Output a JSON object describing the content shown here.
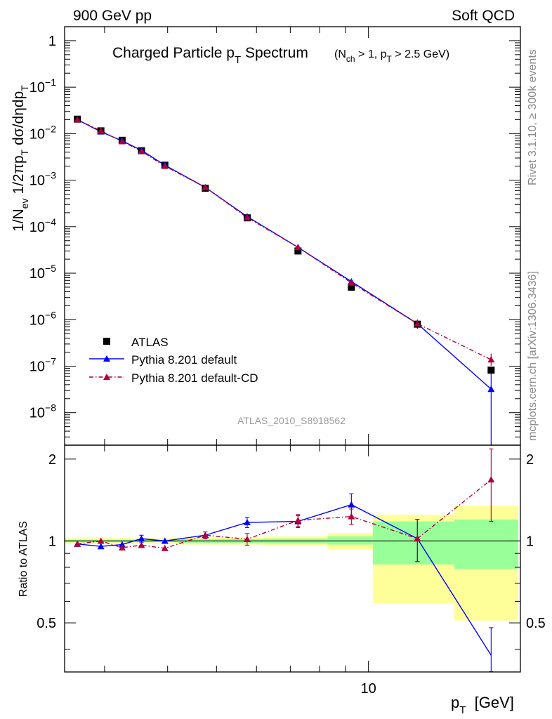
{
  "header": {
    "left": "900 GeV pp",
    "right": "Soft QCD"
  },
  "side_labels": {
    "rivet": "Rivet 3.1.10, ≥ 300k events",
    "mcplots": "mcplots.cern.ch [arXiv:1306.3436]"
  },
  "chart_data": [
    {
      "type": "scatter",
      "title_main": "Charged Particle p",
      "title_main_sub": "T",
      "title_main_tail": " Spectrum",
      "title_cut_1": "(N",
      "title_cut_sub1": "ch",
      "title_cut_2": " > 1, p",
      "title_cut_sub2": "T",
      "title_cut_3": " > 2.5 GeV)",
      "ylabel_parts": [
        "1/N",
        "ev",
        " 1/2πp",
        "T",
        " dσ/dηdp",
        "T"
      ],
      "watermark": "ATLAS_2010_S8918562",
      "yscale": "log",
      "ylim": [
        2e-09,
        2
      ],
      "xscale": "log",
      "xlim": [
        2.5,
        20
      ],
      "y_ticks": [
        {
          "v": 1,
          "label": "1"
        },
        {
          "v": 0.1,
          "label": "10",
          "exp": "−1"
        },
        {
          "v": 0.01,
          "label": "10",
          "exp": "−2"
        },
        {
          "v": 0.001,
          "label": "10",
          "exp": "−3"
        },
        {
          "v": 0.0001,
          "label": "10",
          "exp": "−4"
        },
        {
          "v": 1e-05,
          "label": "10",
          "exp": "−5"
        },
        {
          "v": 1e-06,
          "label": "10",
          "exp": "−6"
        },
        {
          "v": 1e-07,
          "label": "10",
          "exp": "−7"
        },
        {
          "v": 1e-08,
          "label": "10",
          "exp": "−8"
        }
      ],
      "legend_position": "lower-left",
      "x": [
        2.65,
        2.95,
        3.25,
        3.55,
        3.95,
        4.75,
        5.75,
        7.25,
        9.25,
        12.5,
        17.5
      ],
      "series": [
        {
          "name": "ATLAS",
          "color": "#000000",
          "marker": "square",
          "values": [
            0.0205,
            0.0115,
            0.0072,
            0.0043,
            0.0021,
            0.00067,
            0.000155,
            3e-05,
            5e-06,
            8e-07,
            8.2e-08
          ]
        },
        {
          "name": "Pythia 8.201 default",
          "color": "#0000ff",
          "marker": "triangle",
          "line": "solid",
          "values": [
            0.02,
            0.011,
            0.007,
            0.0044,
            0.0021,
            0.0007,
            0.000165,
            3.6e-05,
            6.6e-06,
            8.2e-07,
            3.2e-08
          ]
        },
        {
          "name": "Pythia 8.201 default-CD",
          "color": "#b0003a",
          "marker": "triangle",
          "line": "dashdot",
          "values": [
            0.02,
            0.0115,
            0.0068,
            0.0042,
            0.002,
            0.0007,
            0.000157,
            3.6e-05,
            6.2e-06,
            8.2e-07,
            1.38e-07
          ]
        }
      ]
    },
    {
      "type": "scatter",
      "ylabel": "Ratio to ATLAS",
      "ylim": [
        0.33,
        2.25
      ],
      "y_ticks": [
        {
          "v": 2,
          "label": "2"
        },
        {
          "v": 1,
          "label": "1"
        },
        {
          "v": 0.5,
          "label": "0.5"
        }
      ],
      "x_ticks": [
        {
          "v": 10,
          "label": "10"
        }
      ],
      "xlabel_parts": [
        "p",
        "T",
        "  [GeV]"
      ],
      "xlim": [
        2.5,
        20
      ],
      "bands": [
        {
          "x0": 2.5,
          "x1": 2.8,
          "stat": [
            0.99,
            1.01
          ],
          "tot": [
            0.975,
            1.025
          ]
        },
        {
          "x0": 2.8,
          "x1": 3.1,
          "stat": [
            0.99,
            1.01
          ],
          "tot": [
            0.975,
            1.025
          ]
        },
        {
          "x0": 3.1,
          "x1": 3.4,
          "stat": [
            0.99,
            1.01
          ],
          "tot": [
            0.975,
            1.025
          ]
        },
        {
          "x0": 3.4,
          "x1": 3.7,
          "stat": [
            0.99,
            1.01
          ],
          "tot": [
            0.975,
            1.025
          ]
        },
        {
          "x0": 3.7,
          "x1": 4.2,
          "stat": [
            0.99,
            1.01
          ],
          "tot": [
            0.975,
            1.025
          ]
        },
        {
          "x0": 4.2,
          "x1": 5.3,
          "stat": [
            0.985,
            1.015
          ],
          "tot": [
            0.97,
            1.03
          ]
        },
        {
          "x0": 5.3,
          "x1": 6.2,
          "stat": [
            0.985,
            1.015
          ],
          "tot": [
            0.97,
            1.03
          ]
        },
        {
          "x0": 6.2,
          "x1": 8.3,
          "stat": [
            0.98,
            1.02
          ],
          "tot": [
            0.96,
            1.04
          ]
        },
        {
          "x0": 8.3,
          "x1": 10.2,
          "stat": [
            0.97,
            1.04
          ],
          "tot": [
            0.93,
            1.07
          ]
        },
        {
          "x0": 10.2,
          "x1": 14.8,
          "stat": [
            0.82,
            1.18
          ],
          "tot": [
            0.59,
            1.25
          ]
        },
        {
          "x0": 14.8,
          "x1": 19.8,
          "stat": [
            0.79,
            1.2
          ],
          "tot": [
            0.51,
            1.35
          ]
        }
      ],
      "series": [
        {
          "name": "Pythia 8.201 default",
          "color": "#0000ff",
          "values": [
            0.975,
            0.955,
            0.97,
            1.02,
            1.0,
            1.05,
            1.17,
            1.18,
            1.36,
            1.02,
            0.38
          ],
          "err": [
            0.02,
            0.02,
            0.02,
            0.03,
            0.02,
            0.03,
            0.05,
            0.06,
            0.13,
            0.18,
            0.1
          ]
        },
        {
          "name": "Pythia 8.201 default-CD",
          "color": "#b0003a",
          "values": [
            0.975,
            1.0,
            0.945,
            0.965,
            0.94,
            1.05,
            1.015,
            1.19,
            1.23,
            1.02,
            1.68
          ],
          "err": [
            0.02,
            0.02,
            0.02,
            0.02,
            0.02,
            0.03,
            0.05,
            0.06,
            0.08,
            0.18,
            0.5
          ]
        }
      ]
    }
  ]
}
